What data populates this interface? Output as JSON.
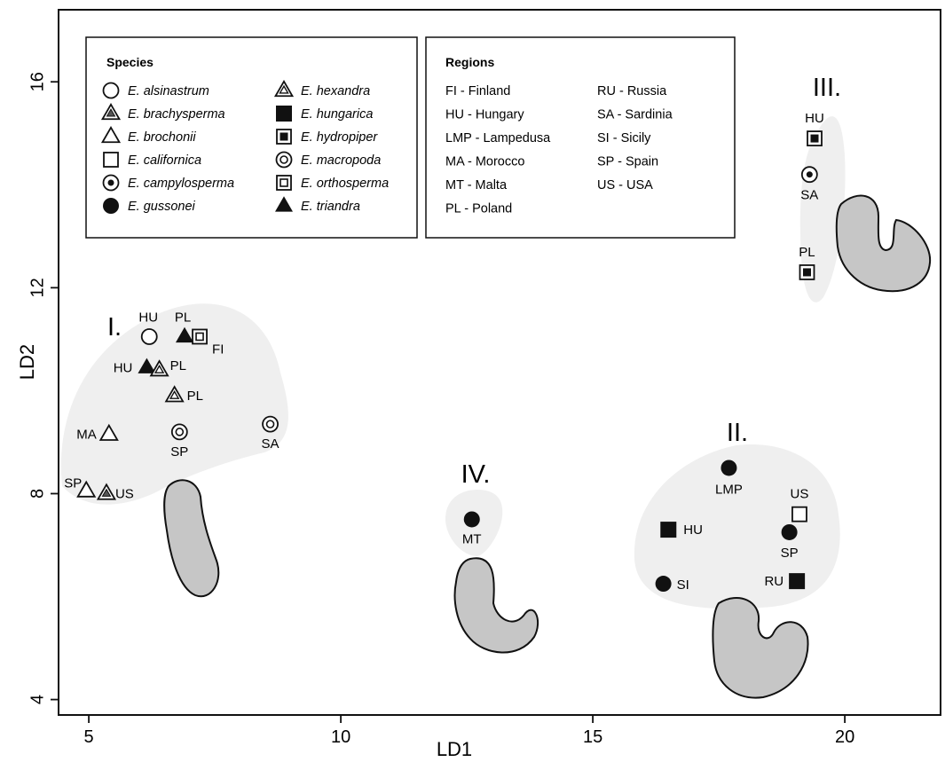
{
  "chart_data": {
    "type": "scatter",
    "xlabel": "LD1",
    "ylabel": "LD2",
    "xlim": [
      4.4,
      21.9
    ],
    "ylim": [
      3.7,
      17.4
    ],
    "xticks": [
      5,
      10,
      15,
      20
    ],
    "yticks": [
      4,
      8,
      12,
      16
    ],
    "grid": false,
    "symbols": {
      "E. alsinastrum": "open-circle",
      "E. brachysperma": "triangle-dark-inner",
      "E. brochonii": "open-triangle",
      "E. californica": "open-square",
      "E. campylosperma": "circle-dot",
      "E. gussonei": "filled-circle",
      "E. hexandra": "triangle-inner",
      "E. hungarica": "filled-square",
      "E. hydropiper": "square-filled-inner",
      "E. macropoda": "double-circle",
      "E. orthosperma": "double-square",
      "E. triandra": "filled-triangle"
    },
    "points": [
      {
        "species": "E. alsinastrum",
        "region": "HU",
        "x": 6.2,
        "y": 11.05
      },
      {
        "species": "E. triandra",
        "region": "PL",
        "x": 6.9,
        "y": 11.05
      },
      {
        "species": "E. orthosperma",
        "region": "FI",
        "x": 7.2,
        "y": 11.05
      },
      {
        "species": "E. triandra",
        "region": "HU",
        "x": 6.15,
        "y": 10.45
      },
      {
        "species": "E. hexandra",
        "region": "PL",
        "x": 6.4,
        "y": 10.4
      },
      {
        "species": "E. hexandra",
        "region": "PL",
        "x": 6.7,
        "y": 9.9
      },
      {
        "species": "E. brochonii",
        "region": "MA",
        "x": 5.4,
        "y": 9.15
      },
      {
        "species": "E. macropoda",
        "region": "SP",
        "x": 6.8,
        "y": 9.2
      },
      {
        "species": "E. macropoda",
        "region": "SA",
        "x": 8.6,
        "y": 9.35
      },
      {
        "species": "E. brochonii",
        "region": "SP",
        "x": 4.95,
        "y": 8.05
      },
      {
        "species": "E. brachysperma",
        "region": "US",
        "x": 5.35,
        "y": 8.0
      },
      {
        "species": "E. gussonei",
        "region": "MT",
        "x": 12.6,
        "y": 7.5
      },
      {
        "species": "E. gussonei",
        "region": "LMP",
        "x": 17.7,
        "y": 8.5
      },
      {
        "species": "E. californica",
        "region": "US",
        "x": 19.1,
        "y": 7.6
      },
      {
        "species": "E. hungarica",
        "region": "HU",
        "x": 16.5,
        "y": 7.3
      },
      {
        "species": "E. gussonei",
        "region": "SP",
        "x": 18.9,
        "y": 7.25
      },
      {
        "species": "E. gussonei",
        "region": "SI",
        "x": 16.4,
        "y": 6.25
      },
      {
        "species": "E. hungarica",
        "region": "RU",
        "x": 19.05,
        "y": 6.3
      },
      {
        "species": "E. hydropiper",
        "region": "HU",
        "x": 19.4,
        "y": 14.9
      },
      {
        "species": "E. campylosperma",
        "region": "SA",
        "x": 19.3,
        "y": 14.2
      },
      {
        "species": "E. hydropiper",
        "region": "PL",
        "x": 19.25,
        "y": 12.3
      }
    ],
    "groups": [
      "I.",
      "II.",
      "III.",
      "IV."
    ]
  },
  "legend": {
    "species_title": "Species",
    "species": [
      {
        "name": "E. alsinastrum",
        "symbol": "open-circle"
      },
      {
        "name": "E. brachysperma",
        "symbol": "triangle-dark-inner"
      },
      {
        "name": "E. brochonii",
        "symbol": "open-triangle"
      },
      {
        "name": "E. californica",
        "symbol": "open-square"
      },
      {
        "name": "E. campylosperma",
        "symbol": "circle-dot"
      },
      {
        "name": "E. gussonei",
        "symbol": "filled-circle"
      },
      {
        "name": "E. hexandra",
        "symbol": "triangle-inner"
      },
      {
        "name": "E. hungarica",
        "symbol": "filled-square"
      },
      {
        "name": "E. hydropiper",
        "symbol": "square-filled-inner"
      },
      {
        "name": "E. macropoda",
        "symbol": "double-circle"
      },
      {
        "name": "E. orthosperma",
        "symbol": "double-square"
      },
      {
        "name": "E. triandra",
        "symbol": "filled-triangle"
      }
    ],
    "regions_title": "Regions",
    "regions": [
      "FI - Finland",
      "HU - Hungary",
      "LMP - Lampedusa",
      "MA - Morocco",
      "MT - Malta",
      "PL - Poland",
      "RU - Russia",
      "SA - Sardinia",
      "SI - Sicily",
      "SP - Spain",
      "US - USA"
    ]
  },
  "colors": {
    "hull": "#efefef",
    "seed": "#c6c6c6",
    "ink": "#111111"
  }
}
